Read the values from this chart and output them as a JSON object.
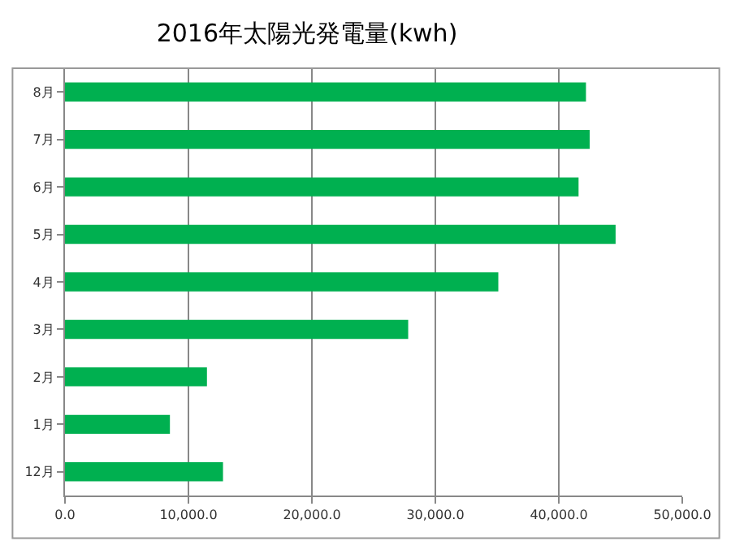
{
  "chart_data": {
    "type": "bar",
    "orientation": "horizontal",
    "title": "2016年太陽光発電量(kwh)",
    "categories": [
      "8月",
      "7月",
      "6月",
      "5月",
      "4月",
      "3月",
      "2月",
      "1月",
      "12月"
    ],
    "values": [
      42200,
      42500,
      41600,
      44600,
      35100,
      27800,
      11500,
      8500,
      12800
    ],
    "color": "#00b050",
    "xlim": [
      0,
      50000
    ],
    "xticks": [
      {
        "value": 0,
        "label": "0.0"
      },
      {
        "value": 10000,
        "label": "10,000.0"
      },
      {
        "value": 20000,
        "label": "20,000.0"
      },
      {
        "value": 30000,
        "label": "30,000.0"
      },
      {
        "value": 40000,
        "label": "40,000.0"
      },
      {
        "value": 50000,
        "label": "50,000.0"
      }
    ],
    "grid": "x",
    "legend": false
  }
}
